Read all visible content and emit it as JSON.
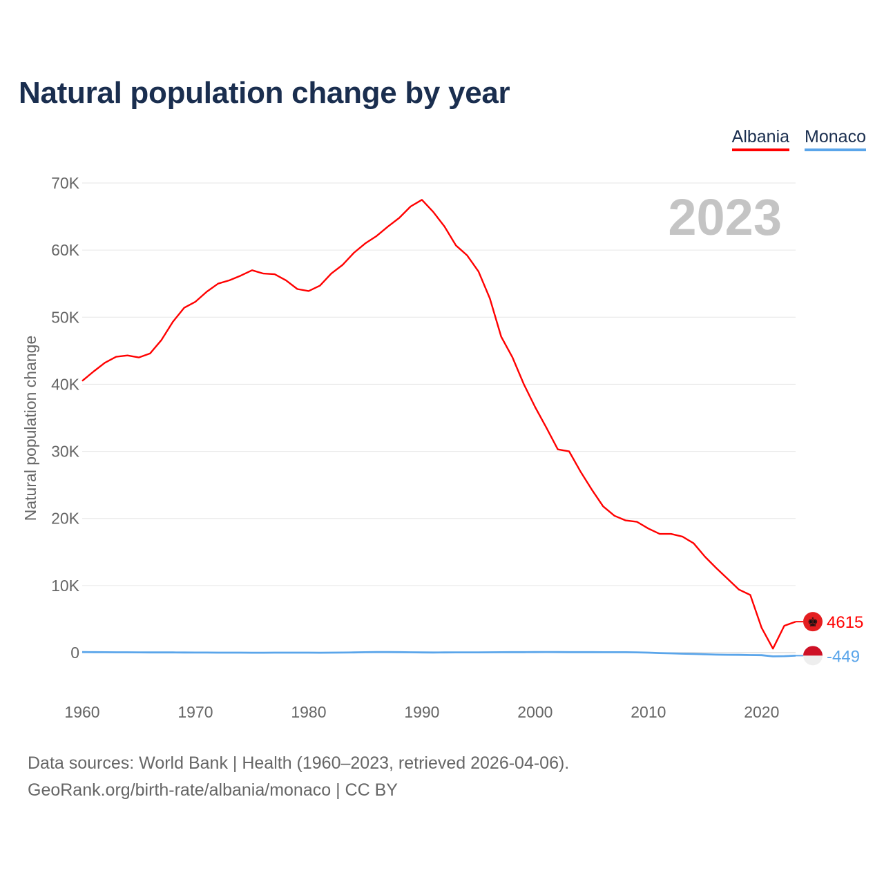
{
  "chart_data": {
    "type": "line",
    "title": "Natural population change by year",
    "ylabel": "Natural population change",
    "xlabel": "",
    "xlim": [
      1960,
      2023
    ],
    "ylim": [
      -7000,
      70000
    ],
    "grid": true,
    "legend_placement": "top-right",
    "year_watermark": "2023",
    "x_ticks": [
      1960,
      1970,
      1980,
      1990,
      2000,
      2010,
      2020
    ],
    "x_tick_labels": [
      "1960",
      "1970",
      "1980",
      "1990",
      "2000",
      "2010",
      "2020"
    ],
    "y_ticks": [
      0,
      10000,
      20000,
      30000,
      40000,
      50000,
      60000,
      70000
    ],
    "y_tick_labels": [
      "0",
      "10K",
      "20K",
      "30K",
      "40K",
      "50K",
      "60K",
      "70K"
    ],
    "x": [
      1960,
      1961,
      1962,
      1963,
      1964,
      1965,
      1966,
      1967,
      1968,
      1969,
      1970,
      1971,
      1972,
      1973,
      1974,
      1975,
      1976,
      1977,
      1978,
      1979,
      1980,
      1981,
      1982,
      1983,
      1984,
      1985,
      1986,
      1987,
      1988,
      1989,
      1990,
      1991,
      1992,
      1993,
      1994,
      1995,
      1996,
      1997,
      1998,
      1999,
      2000,
      2001,
      2002,
      2003,
      2004,
      2005,
      2006,
      2007,
      2008,
      2009,
      2010,
      2011,
      2012,
      2013,
      2014,
      2015,
      2016,
      2017,
      2018,
      2019,
      2020,
      2021,
      2022,
      2023
    ],
    "series": [
      {
        "name": "Albania",
        "color": "#ff0000",
        "end_label": "4615",
        "values": [
          40500,
          41900,
          43200,
          44100,
          44300,
          44000,
          44600,
          46600,
          49300,
          51400,
          52300,
          53800,
          55000,
          55500,
          56200,
          57000,
          56500,
          56400,
          55500,
          54200,
          53900,
          54700,
          56500,
          57800,
          59600,
          61000,
          62100,
          63500,
          64800,
          66500,
          67500,
          65700,
          63500,
          60700,
          59200,
          56800,
          52800,
          47100,
          44000,
          40000,
          36600,
          33500,
          30300,
          30000,
          27000,
          24300,
          21800,
          20400,
          19700,
          19500,
          18500,
          17700,
          17700,
          17300,
          16300,
          14300,
          12600,
          11000,
          9400,
          8600,
          3700,
          600,
          4000,
          4615
        ]
      },
      {
        "name": "Monaco",
        "color": "#5aa5ea",
        "end_label": "-449",
        "values": [
          80,
          70,
          60,
          50,
          50,
          40,
          30,
          30,
          30,
          20,
          10,
          10,
          0,
          0,
          0,
          -10,
          -10,
          0,
          0,
          0,
          0,
          -10,
          0,
          10,
          30,
          60,
          80,
          80,
          70,
          50,
          30,
          20,
          30,
          40,
          40,
          40,
          50,
          60,
          70,
          70,
          80,
          90,
          80,
          70,
          70,
          70,
          60,
          60,
          60,
          40,
          0,
          -60,
          -100,
          -150,
          -200,
          -250,
          -300,
          -320,
          -330,
          -360,
          -380,
          -560,
          -520,
          -449
        ]
      }
    ]
  },
  "legend": [
    "Albania",
    "Monaco"
  ],
  "footer": {
    "line1": "Data sources: World Bank | Health (1960–2023, retrieved 2026-04-06).",
    "line2": "GeoRank.org/birth-rate/albania/monaco | CC BY"
  }
}
